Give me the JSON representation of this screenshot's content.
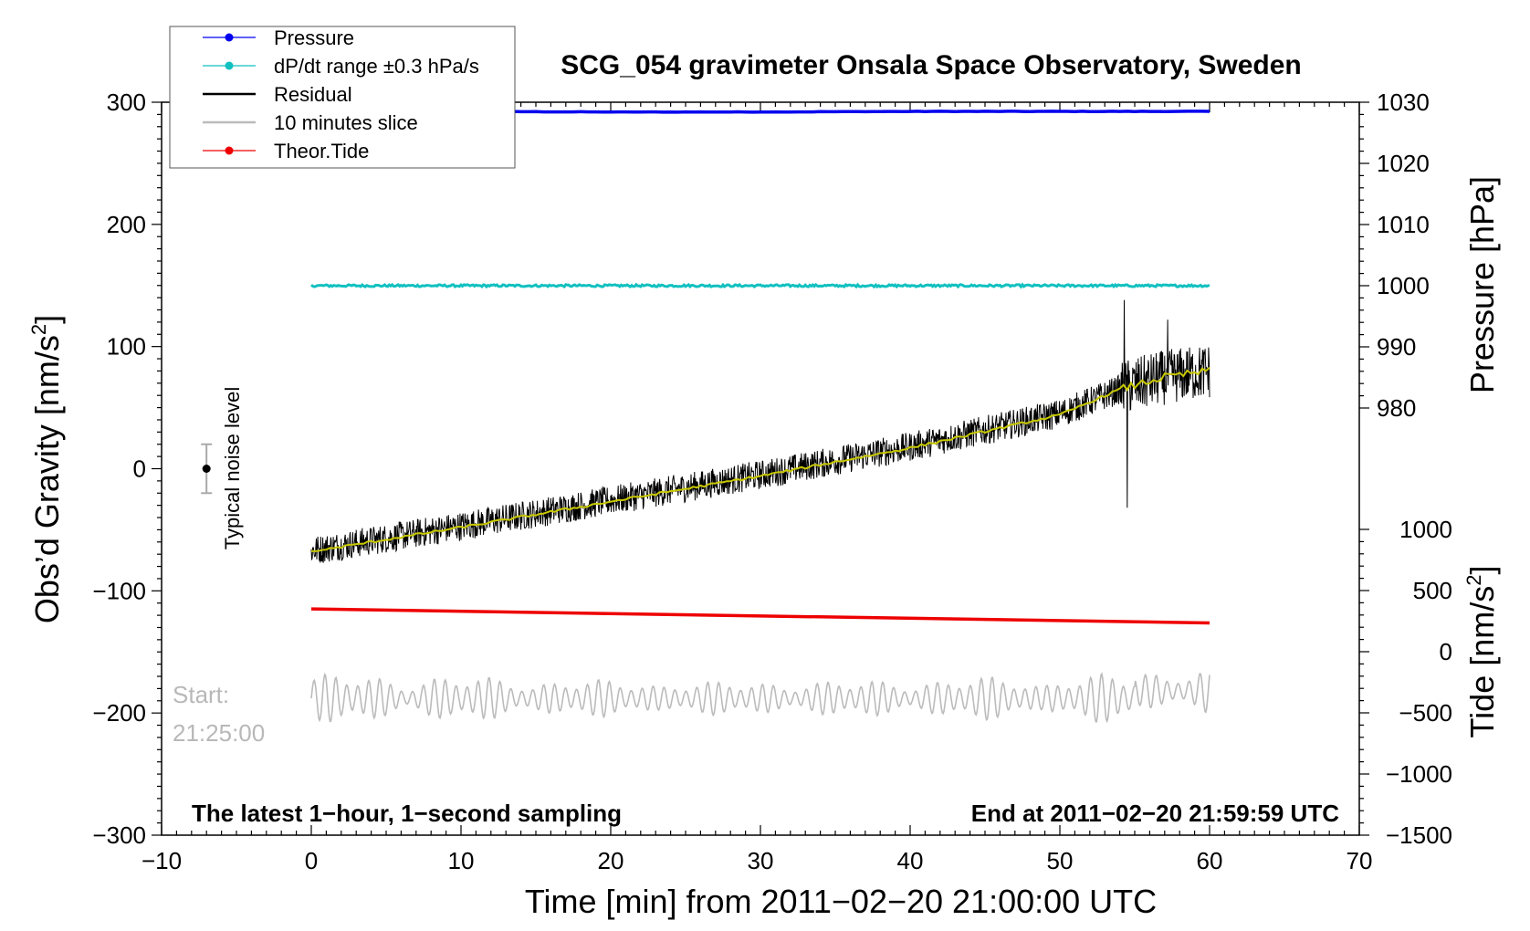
{
  "chart_data": {
    "type": "line",
    "title": "SCG_054 gravimeter Onsala Space Observatory, Sweden",
    "xlabel": "Time [min] from 2011−02−20 21:00:00 UTC",
    "xlim": [
      -10,
      70
    ],
    "xticks": [
      -10,
      0,
      10,
      20,
      30,
      40,
      50,
      60,
      70
    ],
    "x_tick_labels": [
      "−10",
      "0",
      "10",
      "20",
      "30",
      "40",
      "50",
      "60",
      "70"
    ],
    "left_axis": {
      "label": "Obs’d Gravity [nm/s²]",
      "label_main": "Obs’d Gravity [nm/s",
      "label_sup": "2",
      "label_end": "]",
      "ylim": [
        -300,
        300
      ],
      "ticks": [
        -300,
        -200,
        -100,
        0,
        100,
        200,
        300
      ],
      "tick_labels": [
        "−300",
        "−200",
        "−100",
        "0",
        "100",
        "200",
        "300"
      ]
    },
    "pressure_axis": {
      "label": "Pressure [hPa]",
      "ylim": [
        980,
        1030
      ],
      "ticks": [
        980,
        990,
        1000,
        1010,
        1020,
        1030
      ],
      "tick_labels": [
        "980",
        "990",
        "1000",
        "1010",
        "1020",
        "1030"
      ]
    },
    "tide_axis": {
      "label": "Tide [nm/s²]",
      "label_main": "Tide [nm/s",
      "label_sup": "2",
      "label_end": "]",
      "ylim": [
        -1500,
        1000
      ],
      "ticks": [
        -1500,
        -1000,
        -500,
        0,
        500,
        1000
      ],
      "tick_labels": [
        "−1500",
        "−1000",
        "−500",
        "0",
        "500",
        "1000"
      ]
    },
    "series": [
      {
        "name": "Pressure",
        "axis": "pressure",
        "color": "#0000ee",
        "x": [
          0,
          10,
          20,
          30,
          40,
          50,
          60
        ],
        "y": [
          1028.5,
          1028.5,
          1028.4,
          1028.4,
          1028.5,
          1028.5,
          1028.5
        ]
      },
      {
        "name": "dP/dt range ±0.3 hPa/s",
        "axis": "pressure",
        "color": "#11c0c0",
        "x": [
          0,
          60
        ],
        "y": [
          1000,
          1000
        ]
      },
      {
        "name": "Residual",
        "axis": "gravity",
        "color": "#000000",
        "x": [
          0,
          10,
          20,
          30,
          40,
          50,
          54,
          57,
          60
        ],
        "y": [
          -67,
          -47,
          -26,
          -5,
          18,
          45,
          65,
          75,
          80
        ],
        "noise_amplitude": 12,
        "spikes": [
          {
            "x": 54.3,
            "y": 138
          },
          {
            "x": 54.5,
            "y": -32
          },
          {
            "x": 57.2,
            "y": 122
          }
        ]
      },
      {
        "name": "Residual trend",
        "axis": "gravity",
        "color": "#c8c800",
        "x": [
          0,
          10,
          20,
          30,
          40,
          50,
          54,
          57,
          60
        ],
        "y": [
          -68,
          -48,
          -27,
          -6,
          17,
          44,
          65,
          75,
          80
        ]
      },
      {
        "name": "10 minutes slice",
        "axis": "gravity",
        "color": "#bbbbbb",
        "x": [
          0,
          60
        ],
        "y_center": -188,
        "amplitude": 18
      },
      {
        "name": "Theor.Tide",
        "axis": "tide",
        "color": "#ee0000",
        "x": [
          0,
          60
        ],
        "y": [
          350,
          235
        ]
      }
    ],
    "legend": {
      "position": "top-left",
      "entries": [
        {
          "label": "Pressure",
          "color": "#0000ee",
          "marker": true
        },
        {
          "label": "dP/dt range ±0.3 hPa/s",
          "color": "#11c0c0",
          "marker": true
        },
        {
          "label": "Residual",
          "color": "#000000",
          "marker": false
        },
        {
          "label": "10 minutes slice",
          "color": "#bbbbbb",
          "marker": false
        },
        {
          "label": "Theor.Tide",
          "color": "#ee0000",
          "marker": true
        }
      ]
    },
    "annotations": {
      "noise": {
        "label": "Typical noise level",
        "x": -7,
        "y": 0,
        "err": 20
      },
      "start_label": "Start:",
      "start_time": "21:25:00",
      "footer_left": "The latest 1−hour, 1−second sampling",
      "footer_right": "End at 2011−02−20 21:59:59 UTC"
    }
  }
}
